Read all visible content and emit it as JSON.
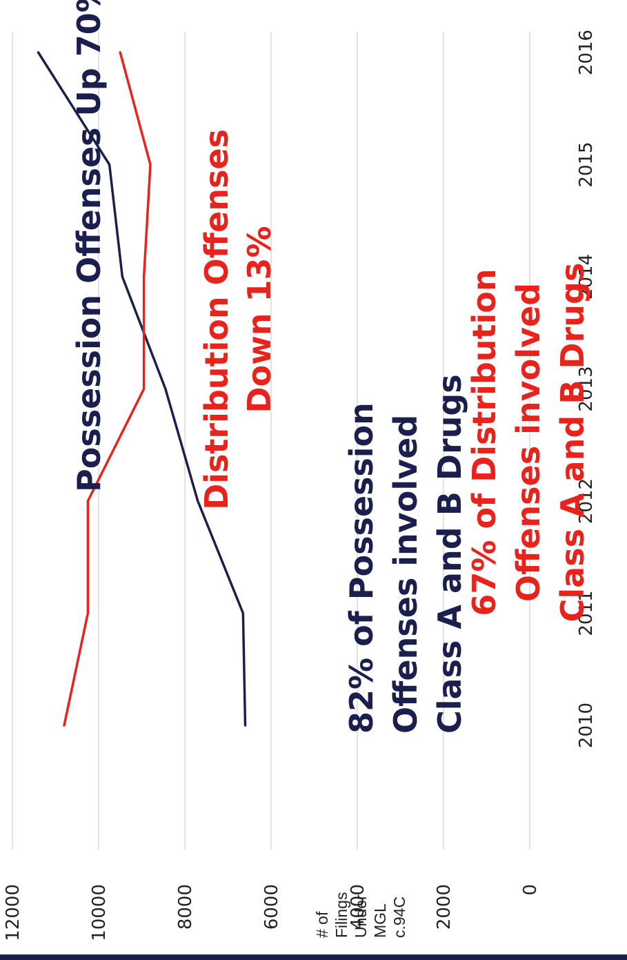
{
  "chart_data": {
    "type": "line",
    "x": [
      "2010",
      "2011",
      "2012",
      "2013",
      "2014",
      "2015",
      "2016"
    ],
    "ylabel": [
      "# of",
      "Filings",
      "Under",
      "MGL",
      "c.94C"
    ],
    "yticks": [
      "0",
      "2000",
      "4000",
      "6000",
      "8000",
      "10000",
      "12000"
    ],
    "ylim": [
      0,
      12000
    ],
    "grid": true,
    "series": [
      {
        "values": [
          6600,
          6650,
          7700,
          8450,
          9450,
          9750,
          11400
        ],
        "color": "#1b1f4d"
      },
      {
        "values": [
          10800,
          10250,
          10250,
          8950,
          8950,
          8800,
          9500
        ],
        "color": "#e8231b"
      }
    ],
    "annotations": [
      {
        "lines": [
          "Possession Offenses Up 70%"
        ],
        "color": "#1b1f4d"
      },
      {
        "lines": [
          "Distribution Offenses",
          "Down 13%"
        ],
        "color": "#e8231b"
      },
      {
        "lines": [
          "82% of Possession",
          "Offenses involved",
          "Class A and B Drugs"
        ],
        "color": "#1b1f4d"
      },
      {
        "lines": [
          "67% of Distribution",
          "Offenses involved",
          "Class A and B Drugs"
        ],
        "color": "#e8231b"
      }
    ]
  }
}
